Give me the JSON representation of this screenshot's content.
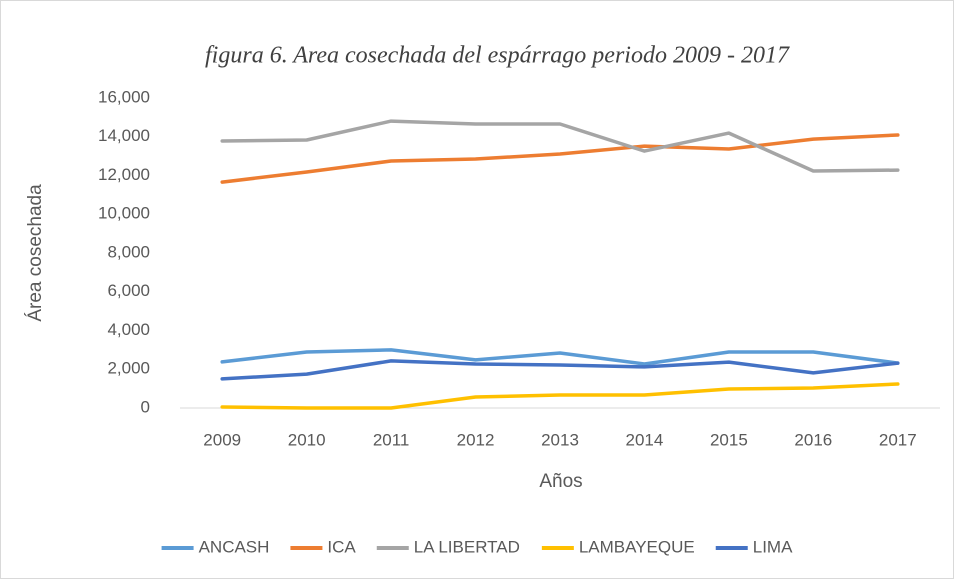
{
  "chart_data": {
    "type": "line",
    "title": "figura 6. Area cosechada del espárrago periodo 2009 - 2017",
    "x_label": "Años",
    "y_label": "Área cosechada",
    "categories": [
      "2009",
      "2010",
      "2011",
      "2012",
      "2013",
      "2014",
      "2015",
      "2016",
      "2017"
    ],
    "series": [
      {
        "name": "ANCASH",
        "color": "#5b9bd5",
        "values": [
          2380,
          2890,
          3000,
          2480,
          2840,
          2270,
          2890,
          2890,
          2320
        ]
      },
      {
        "name": "ICA",
        "color": "#ed7d31",
        "values": [
          11660,
          12180,
          12750,
          12850,
          13110,
          13520,
          13370,
          13880,
          14090
        ]
      },
      {
        "name": "LA LIBERTAD",
        "color": "#a5a5a5",
        "values": [
          13780,
          13830,
          14810,
          14660,
          14660,
          13260,
          14190,
          12230,
          12280
        ]
      },
      {
        "name": "LAMBAYEQUE",
        "color": "#ffc000",
        "values": [
          50,
          0,
          0,
          570,
          670,
          670,
          980,
          1030,
          1240
        ]
      },
      {
        "name": "LIMA",
        "color": "#4472c4",
        "values": [
          1500,
          1750,
          2430,
          2270,
          2220,
          2120,
          2370,
          1810,
          2320
        ]
      }
    ],
    "ylim": [
      0,
      16000
    ],
    "yticks": [
      0,
      {
        "value": 2000,
        "label": "2,000"
      },
      {
        "value": 4000,
        "label": "4,000"
      },
      {
        "value": 6000,
        "label": "6,000"
      },
      {
        "value": 8000,
        "label": "8,000"
      },
      {
        "value": 10000,
        "label": "10,000"
      },
      {
        "value": 12000,
        "label": "12,000"
      },
      {
        "value": 14000,
        "label": "14,000"
      },
      {
        "value": 16000,
        "label": "16,000"
      }
    ],
    "legend": "bottom"
  }
}
